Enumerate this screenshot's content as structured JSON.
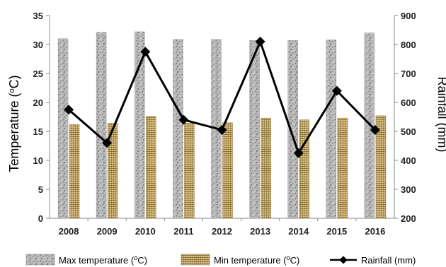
{
  "colors": {
    "max_bar_base": "#b9b9b9",
    "max_bar_speckle": "#7c7c7c",
    "min_bar_base": "#d9c089",
    "min_bar_weave": "#6b5418",
    "rainfall_line": "#000000",
    "axis": "#888888"
  },
  "chart_data": {
    "type": "bar",
    "categories": [
      "2008",
      "2009",
      "2010",
      "2011",
      "2012",
      "2013",
      "2014",
      "2015",
      "2016"
    ],
    "series": [
      {
        "name": "Max temperature (",
        "name_sup": "o",
        "name_end": "C)",
        "kind": "bar",
        "axis": "left",
        "values": [
          31.0,
          32.1,
          32.2,
          30.9,
          30.9,
          30.7,
          30.7,
          30.8,
          32.0
        ]
      },
      {
        "name": "Min temperature (",
        "name_sup": "o",
        "name_end": "C)",
        "kind": "bar",
        "axis": "left",
        "values": [
          16.2,
          16.4,
          17.6,
          16.4,
          16.5,
          17.3,
          17.0,
          17.3,
          17.7
        ]
      },
      {
        "name": "Rainfall (mm)",
        "kind": "line",
        "axis": "right",
        "values": [
          575,
          460,
          775,
          540,
          505,
          810,
          425,
          640,
          505
        ]
      }
    ],
    "ylabel_left": {
      "text": "Temperature (",
      "sup": "o",
      "end": "C)"
    },
    "ylabel_right": "Rainfall (mm)",
    "ylim_left": [
      0,
      35
    ],
    "yticks_left": [
      "0",
      "5",
      "10",
      "15",
      "20",
      "25",
      "30",
      "35"
    ],
    "ylim_right": [
      200,
      900
    ],
    "yticks_right": [
      "200",
      "300",
      "400",
      "500",
      "600",
      "700",
      "800",
      "900"
    ],
    "grid": false,
    "legend_position": "bottom"
  }
}
